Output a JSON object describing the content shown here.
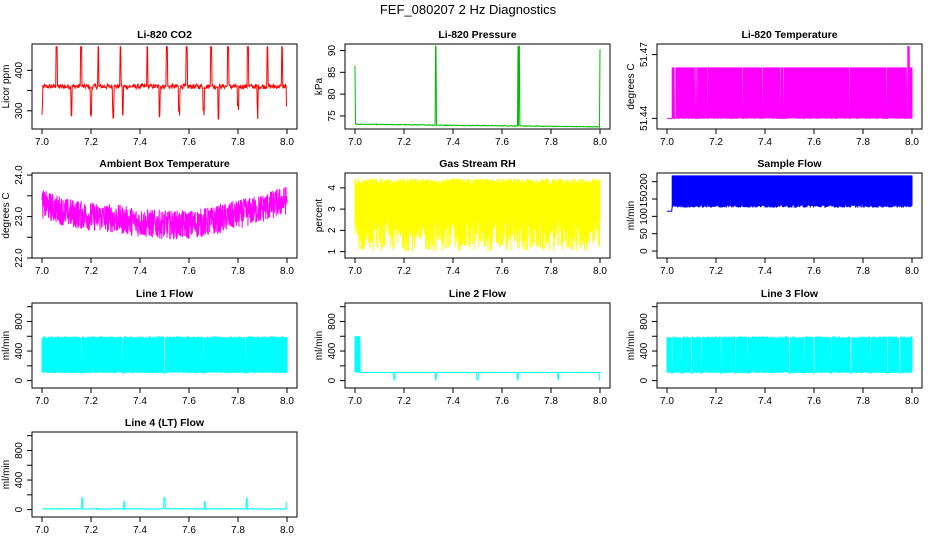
{
  "figure": {
    "title": "FEF_080207  2 Hz Diagnostics",
    "x_ticks": [
      "7.0",
      "7.2",
      "7.4",
      "7.6",
      "7.8",
      "8.0"
    ]
  },
  "chart_data": [
    {
      "id": "co2",
      "type": "line",
      "title": "Li-820 CO2",
      "ylabel": "Licor ppm",
      "color": "#ff0000",
      "xlim": [
        7.0,
        8.0
      ],
      "ylim": [
        255,
        465
      ],
      "yticks": [
        300,
        350,
        400
      ],
      "ytick_labels": [
        "300",
        "",
        "400"
      ],
      "baseline": 360,
      "noise": 6,
      "spikes_up": [
        7.06,
        7.16,
        7.23,
        7.32,
        7.43,
        7.51,
        7.59,
        7.69,
        7.76,
        7.84,
        7.92,
        7.98
      ],
      "spike_up_value": 458,
      "spikes_down": [
        7.0,
        7.12,
        7.2,
        7.29,
        7.33,
        7.48,
        7.56,
        7.66,
        7.72,
        7.8,
        7.88,
        8.0
      ],
      "spike_down_value": 278
    },
    {
      "id": "pressure",
      "type": "line",
      "title": "Li-820 Pressure",
      "ylabel": "kPa",
      "color": "#00bb00",
      "xlim": [
        7.0,
        8.0
      ],
      "ylim": [
        72,
        91.5
      ],
      "yticks": [
        75,
        80,
        85,
        90
      ],
      "ytick_labels": [
        "75",
        "80",
        "85",
        "90"
      ],
      "baseline_start": 73.1,
      "baseline_end": 72.5,
      "noise": 0.15,
      "spikes": [
        [
          7.0,
          86.5
        ],
        [
          7.33,
          91.0
        ],
        [
          7.665,
          91.0
        ],
        [
          7.67,
          91.0
        ],
        [
          8.0,
          90.3
        ]
      ]
    },
    {
      "id": "licor_temp",
      "type": "line",
      "title": "Li-820 Temperature",
      "ylabel": "degrees C",
      "color": "#ff00ff",
      "xlim": [
        7.0,
        8.0
      ],
      "ylim": [
        51.435,
        51.475
      ],
      "yticks": [
        51.44,
        51.47
      ],
      "ytick_labels": [
        "51.44",
        "51.47"
      ],
      "low": 51.44,
      "high": 51.464,
      "peak": 51.474,
      "peak_at": 7.985,
      "start": 7.02
    },
    {
      "id": "ambient_temp",
      "type": "line",
      "title": "Ambient Box Temperature",
      "ylabel": "degrees C",
      "color": "#ff00ff",
      "xlim": [
        7.0,
        8.0
      ],
      "ylim": [
        22.0,
        24.05
      ],
      "yticks": [
        22.0,
        22.5,
        23.0,
        23.5,
        24.0
      ],
      "ytick_labels": [
        "22.0",
        "",
        "23.0",
        "",
        "24.0"
      ],
      "trend_x": [
        7.0,
        7.1,
        7.2,
        7.3,
        7.4,
        7.5,
        7.6,
        7.7,
        7.8,
        7.9,
        8.0
      ],
      "trend_y": [
        23.3,
        23.1,
        23.0,
        22.95,
        22.85,
        22.8,
        22.8,
        22.9,
        23.05,
        23.2,
        23.4
      ],
      "noise": 0.35
    },
    {
      "id": "rh",
      "type": "line",
      "title": "Gas Stream RH",
      "ylabel": "percent",
      "color": "#ffff00",
      "xlim": [
        7.0,
        8.0
      ],
      "ylim": [
        0.7,
        4.7
      ],
      "yticks": [
        1,
        2,
        3,
        4
      ],
      "ytick_labels": [
        "1",
        "2",
        "3",
        "4"
      ],
      "low": 1.0,
      "high": 4.45
    },
    {
      "id": "sample_flow",
      "type": "line",
      "title": "Sample Flow",
      "ylabel": "ml/min",
      "color": "#0000ff",
      "xlim": [
        7.0,
        8.0
      ],
      "ylim": [
        -20,
        225
      ],
      "yticks": [
        0,
        50,
        100,
        150,
        200
      ],
      "ytick_labels": [
        "0",
        "50",
        "100",
        "150",
        "200"
      ],
      "low": 125,
      "high": 218,
      "start": 7.02
    },
    {
      "id": "line1",
      "type": "line",
      "title": "Line 1 Flow",
      "ylabel": "ml/min",
      "color": "#00ffff",
      "xlim": [
        7.0,
        8.0
      ],
      "ylim": [
        -100,
        1050
      ],
      "yticks": [
        0,
        200,
        400,
        600,
        800,
        1000
      ],
      "ytick_labels": [
        "0",
        "",
        "400",
        "",
        "800",
        ""
      ],
      "low": 100,
      "high": 600,
      "gaps": [
        7.16,
        7.33,
        7.5,
        7.66,
        7.83
      ]
    },
    {
      "id": "line2",
      "type": "line",
      "title": "Line 2 Flow",
      "ylabel": "ml/min",
      "color": "#00ffff",
      "xlim": [
        7.0,
        8.0
      ],
      "ylim": [
        -100,
        1050
      ],
      "yticks": [
        0,
        200,
        400,
        600,
        800,
        1000
      ],
      "ytick_labels": [
        "0",
        "",
        "400",
        "",
        "800",
        ""
      ],
      "level": 110,
      "burst_end": 7.02,
      "burst_high": 600,
      "dips": [
        7.16,
        7.33,
        7.5,
        7.665,
        7.83,
        8.0
      ],
      "dip_value": 10
    },
    {
      "id": "line3",
      "type": "line",
      "title": "Line 3 Flow",
      "ylabel": "ml/min",
      "color": "#00ffff",
      "xlim": [
        7.0,
        8.0
      ],
      "ylim": [
        -100,
        1050
      ],
      "yticks": [
        0,
        200,
        400,
        600,
        800,
        1000
      ],
      "ytick_labels": [
        "0",
        "",
        "400",
        "",
        "800",
        ""
      ],
      "low": 100,
      "high": 600,
      "gaps": [
        7.02,
        7.06,
        7.1,
        7.14,
        7.22,
        7.28,
        7.33,
        7.5,
        7.56,
        7.6,
        7.67,
        7.75,
        7.83,
        7.9,
        7.95
      ]
    },
    {
      "id": "line4",
      "type": "line",
      "title": "Line 4 (LT) Flow",
      "ylabel": "ml/min",
      "color": "#00ffff",
      "xlim": [
        7.0,
        8.0
      ],
      "ylim": [
        -100,
        1050
      ],
      "yticks": [
        0,
        200,
        400,
        600,
        800,
        1000
      ],
      "ytick_labels": [
        "0",
        "",
        "400",
        "",
        "800",
        ""
      ],
      "level": 5,
      "spikes": [
        [
          7.165,
          160
        ],
        [
          7.335,
          110
        ],
        [
          7.5,
          160
        ],
        [
          7.665,
          110
        ],
        [
          7.835,
          150
        ],
        [
          8.0,
          100
        ]
      ]
    }
  ]
}
